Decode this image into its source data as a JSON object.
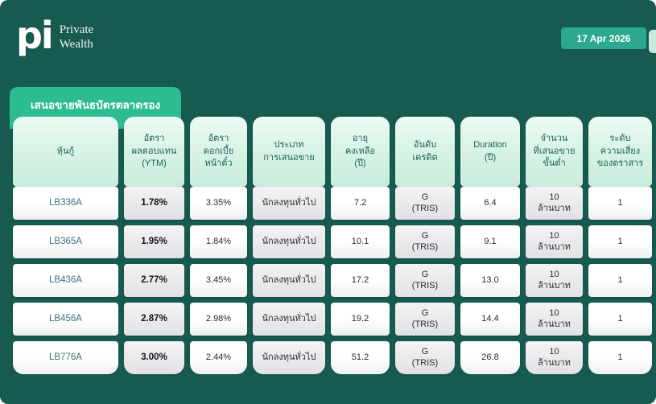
{
  "header": {
    "logo_mark": "pi",
    "logo_line1": "Private",
    "logo_line2": "Wealth",
    "date_badge": "17 Apr 2026"
  },
  "tab": {
    "label": "เสนอขายพันธบัตรตลาดรอง"
  },
  "table": {
    "column_ids": [
      "bond",
      "ytm",
      "coupon_rate",
      "offer_type",
      "remaining_years",
      "credit_rating",
      "duration_years",
      "min_offer_amount",
      "risk_level"
    ],
    "columns": [
      "หุ้นกู้",
      "อัตรา\nผลตอบแทน\n(YTM)",
      "อัตรา\nดอกเบี้ย\nหน้าตั๋ว",
      "ประเภท\nการเสนอขาย",
      "อายุ\nคงเหลือ\n(ปี)",
      "อันดับ\nเครดิต",
      "Duration\n(ปี)",
      "จำนวน\nที่เสนอขาย\nขั้นต่ำ",
      "ระดับ\nความเสี่ยง\nของตราสาร"
    ],
    "rows": [
      [
        "LB336A",
        "1.78%",
        "3.35%",
        "นักลงทุนทั่วไป",
        "7.2",
        "G\n(TRIS)",
        "6.4",
        "10\nล้านบาท",
        "1"
      ],
      [
        "LB365A",
        "1.95%",
        "1.84%",
        "นักลงทุนทั่วไป",
        "10.1",
        "G\n(TRIS)",
        "9.1",
        "10\nล้านบาท",
        "1"
      ],
      [
        "LB436A",
        "2.77%",
        "3.45%",
        "นักลงทุนทั่วไป",
        "17.2",
        "G\n(TRIS)",
        "13.0",
        "10\nล้านบาท",
        "1"
      ],
      [
        "LB456A",
        "2.87%",
        "2.98%",
        "นักลงทุนทั่วไป",
        "19.2",
        "G\n(TRIS)",
        "14.4",
        "10\nล้านบาท",
        "1"
      ],
      [
        "LB776A",
        "3.00%",
        "2.44%",
        "นักลงทุนทั่วไป",
        "51.2",
        "G\n(TRIS)",
        "26.8",
        "10\nล้านบาท",
        "1"
      ]
    ]
  },
  "colors": {
    "page_background": "#175a50",
    "tab_green": "#2cbc91",
    "date_badge_teal": "#2ba88d",
    "header_cell_mint": "#d6f2e4",
    "header_text_teal": "#1d5f57",
    "cell_gray": "#e9e9ed",
    "bond_code_text": "#3e6f7a"
  }
}
